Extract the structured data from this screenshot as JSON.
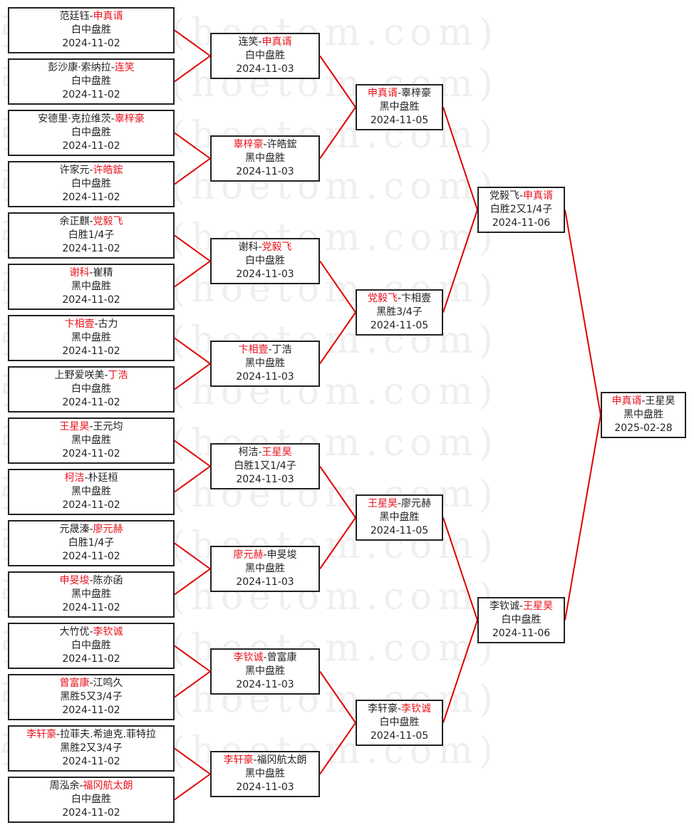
{
  "watermark": "弘通围棋(hoetom.com)",
  "line_color": "#e00000",
  "winner_color": "#e8141e",
  "rounds": [
    [
      {
        "p1": "范廷钰",
        "p2": "申真谞",
        "winner": 2,
        "result": "白中盘胜",
        "date": "2024-11-02"
      },
      {
        "p1": "彭沙康·索纳拉",
        "p2": "连笑",
        "winner": 2,
        "result": "白中盘胜",
        "date": "2024-11-02"
      },
      {
        "p1": "安德里·克拉维茨",
        "p2": "辜梓豪",
        "winner": 2,
        "result": "白中盘胜",
        "date": "2024-11-02"
      },
      {
        "p1": "许家元",
        "p2": "许皓鋐",
        "winner": 2,
        "result": "白中盘胜",
        "date": "2024-11-02"
      },
      {
        "p1": "余正麒",
        "p2": "党毅飞",
        "winner": 2,
        "result": "白胜1/4子",
        "date": "2024-11-02"
      },
      {
        "p1": "谢科",
        "p2": "崔精",
        "winner": 1,
        "result": "黑中盘胜",
        "date": "2024-11-02"
      },
      {
        "p1": "卞相壹",
        "p2": "古力",
        "winner": 1,
        "result": "黑中盘胜",
        "date": "2024-11-02"
      },
      {
        "p1": "上野爱咲美",
        "p2": "丁浩",
        "winner": 2,
        "result": "白中盘胜",
        "date": "2024-11-02"
      },
      {
        "p1": "王星昊",
        "p2": "王元均",
        "winner": 1,
        "result": "黑中盘胜",
        "date": "2024-11-02"
      },
      {
        "p1": "柯洁",
        "p2": "朴廷桓",
        "winner": 1,
        "result": "黑中盘胜",
        "date": "2024-11-02"
      },
      {
        "p1": "元晟溱",
        "p2": "廖元赫",
        "winner": 2,
        "result": "白胜1/4子",
        "date": "2024-11-02"
      },
      {
        "p1": "申旻埈",
        "p2": "陈亦函",
        "winner": 1,
        "result": "黑中盘胜",
        "date": "2024-11-02"
      },
      {
        "p1": "大竹优",
        "p2": "李钦诚",
        "winner": 2,
        "result": "白中盘胜",
        "date": "2024-11-02"
      },
      {
        "p1": "曾富康",
        "p2": "江鸣久",
        "winner": 1,
        "result": "黑胜5又3/4子",
        "date": "2024-11-02"
      },
      {
        "p1": "李轩豪",
        "p2": "拉菲夫.希迪克.菲特拉",
        "winner": 1,
        "result": "黑胜2又3/4子",
        "date": "2024-11-02"
      },
      {
        "p1": "周泓余",
        "p2": "福冈航太朗",
        "winner": 2,
        "result": "白中盘胜",
        "date": "2024-11-02"
      }
    ],
    [
      {
        "p1": "连笑",
        "p2": "申真谞",
        "winner": 2,
        "result": "白中盘胜",
        "date": "2024-11-03"
      },
      {
        "p1": "辜梓豪",
        "p2": "许皓鋐",
        "winner": 1,
        "result": "黑中盘胜",
        "date": "2024-11-03"
      },
      {
        "p1": "谢科",
        "p2": "党毅飞",
        "winner": 2,
        "result": "白中盘胜",
        "date": "2024-11-03"
      },
      {
        "p1": "卞相壹",
        "p2": "丁浩",
        "winner": 1,
        "result": "黑中盘胜",
        "date": "2024-11-03"
      },
      {
        "p1": "柯洁",
        "p2": "王星昊",
        "winner": 2,
        "result": "白胜1又1/4子",
        "date": "2024-11-03"
      },
      {
        "p1": "廖元赫",
        "p2": "申旻埈",
        "winner": 1,
        "result": "黑中盘胜",
        "date": "2024-11-03"
      },
      {
        "p1": "李钦诚",
        "p2": "曾富康",
        "winner": 1,
        "result": "黑中盘胜",
        "date": "2024-11-03"
      },
      {
        "p1": "李轩豪",
        "p2": "福冈航太朗",
        "winner": 1,
        "result": "黑中盘胜",
        "date": "2024-11-03"
      }
    ],
    [
      {
        "p1": "申真谞",
        "p2": "辜梓豪",
        "winner": 1,
        "result": "黑中盘胜",
        "date": "2024-11-05"
      },
      {
        "p1": "党毅飞",
        "p2": "卞相壹",
        "winner": 1,
        "result": "黑胜3/4子",
        "date": "2024-11-05"
      },
      {
        "p1": "王星昊",
        "p2": "廖元赫",
        "winner": 1,
        "result": "黑中盘胜",
        "date": "2024-11-05"
      },
      {
        "p1": "李轩豪",
        "p2": "李钦诚",
        "winner": 2,
        "result": "白中盘胜",
        "date": "2024-11-05"
      }
    ],
    [
      {
        "p1": "党毅飞",
        "p2": "申真谞",
        "winner": 2,
        "result": "白胜2又1/4子",
        "date": "2024-11-06"
      },
      {
        "p1": "李钦诚",
        "p2": "王星昊",
        "winner": 2,
        "result": "白中盘胜",
        "date": "2024-11-06"
      }
    ],
    [
      {
        "p1": "申真谞",
        "p2": "王星昊",
        "winner": 1,
        "result": "黑中盘胜",
        "date": "2025-02-28"
      }
    ]
  ]
}
